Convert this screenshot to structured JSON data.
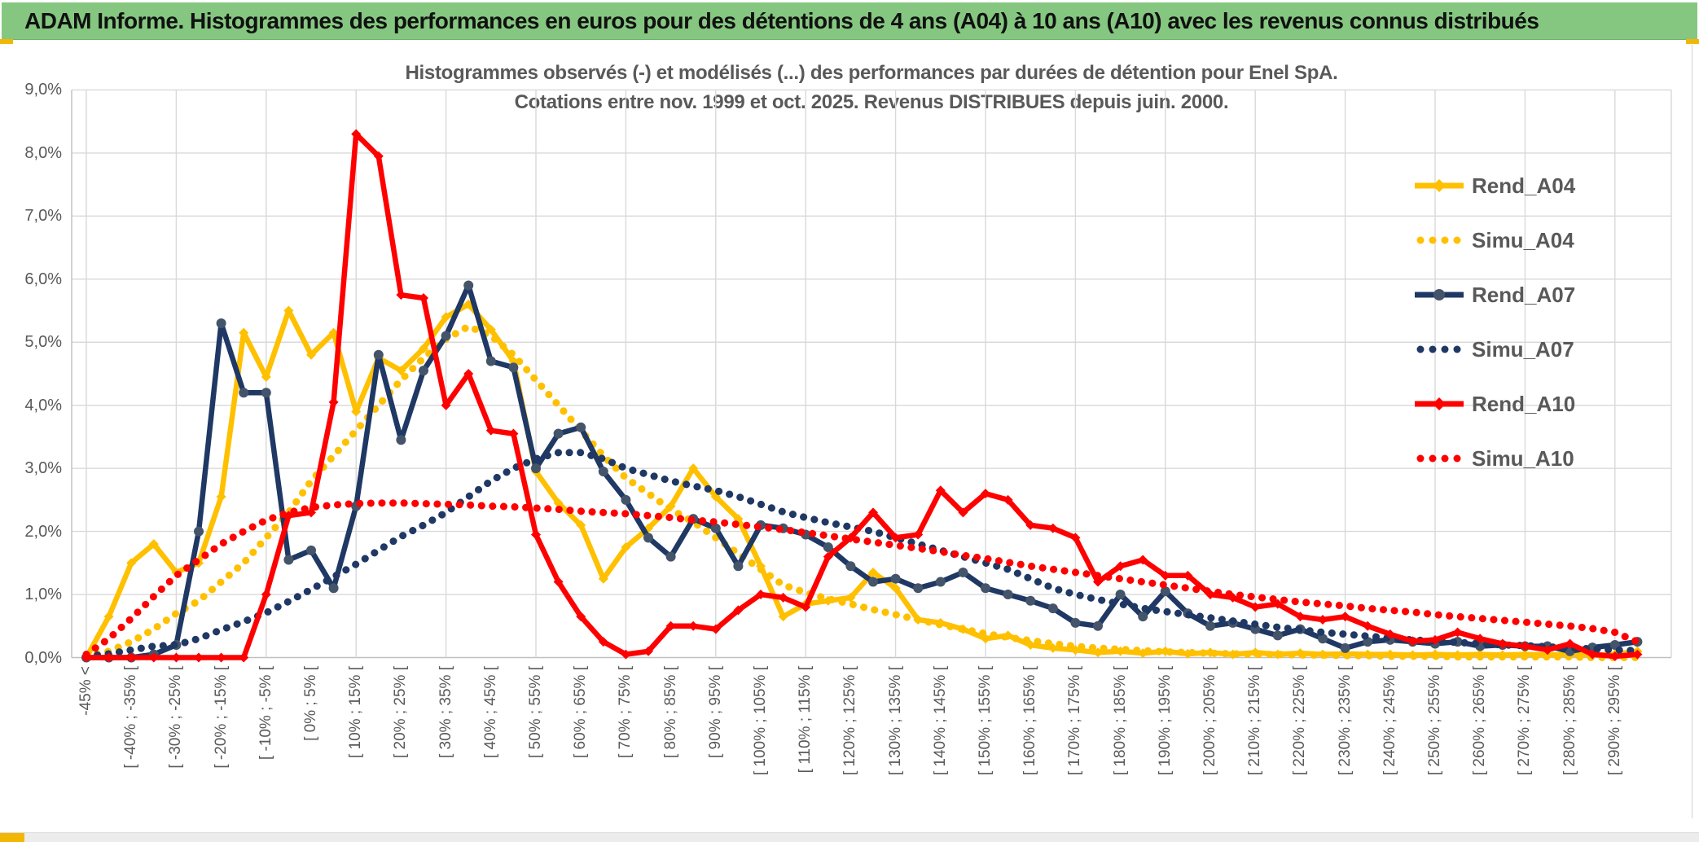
{
  "header": {
    "title": "ADAM Informe. Histogrammes des performances en euros pour des détentions de 4 ans (A04) à 10 ans (A10) avec les revenus connus distribués",
    "bar_color": "#85C780",
    "accent_color": "#F2B705"
  },
  "chart": {
    "title_line1": "Histogrammes observés (-) et modélisés (...) des performances par durées de détention pour Enel SpA.",
    "title_line2": "Cotations entre nov. 1999 et oct. 2025. Revenus DISTRIBUES depuis juin. 2000.",
    "title_color": "#595959",
    "gridline_color": "#D9D9D9",
    "axis_color": "#BFBFBF"
  },
  "chart_data": {
    "type": "line",
    "title": "Histogrammes observés (-) et modélisés (...) des performances par durées de détention pour Enel SpA. Cotations entre nov. 1999 et oct. 2025. Revenus DISTRIBUES depuis juin. 2000.",
    "xlabel": "",
    "ylabel": "",
    "ylim": [
      0,
      9
    ],
    "ytick_labels": [
      "0,0%",
      "1,0%",
      "2,0%",
      "3,0%",
      "4,0%",
      "5,0%",
      "6,0%",
      "7,0%",
      "8,0%",
      "9,0%"
    ],
    "grid": true,
    "legend_position": "right",
    "categories": [
      "-45% <",
      "",
      "[ -40% ; -35% [",
      "",
      "[ -30% ; -25% [",
      "",
      "[ -20% ; -15% [",
      "",
      "[ -10% ; -5% [",
      "",
      "[ 0% ; 5% [",
      "",
      "[ 10% ; 15% [",
      "",
      "[ 20% ; 25% [",
      "",
      "[ 30% ; 35% [",
      "",
      "[ 40% ; 45% [",
      "",
      "[ 50% ; 55% [",
      "",
      "[ 60% ; 65% [",
      "",
      "[ 70% ; 75% [",
      "",
      "[ 80% ; 85% [",
      "",
      "[ 90% ; 95% [",
      "",
      "[ 100% ; 105% [",
      "",
      "[ 110% ; 115% [",
      "",
      "[ 120% ; 125% [",
      "",
      "[ 130% ; 135% [",
      "",
      "[ 140% ; 145% [",
      "",
      "[ 150% ; 155% [",
      "",
      "[ 160% ; 165% [",
      "",
      "[ 170% ; 175% [",
      "",
      "[ 180% ; 185% [",
      "",
      "[ 190% ; 195% [",
      "",
      "[ 200% ; 205% [",
      "",
      "[ 210% ; 215% [",
      "",
      "[ 220% ; 225% [",
      "",
      "[ 230% ; 235% [",
      "",
      "[ 240% ; 245% [",
      "",
      "[ 250% ; 255% [",
      "",
      "[ 260% ; 265% [",
      "",
      "[ 270% ; 275% [",
      "",
      "[ 280% ; 285% [",
      "",
      "[ 290% ; 295% [",
      ""
    ],
    "series": [
      {
        "name": "Rend_A04",
        "color": "#FFC000",
        "style": "solid",
        "marker": "diamond",
        "marker_color": "#FFC000",
        "values": [
          0,
          0.65,
          1.5,
          1.8,
          1.35,
          1.5,
          2.55,
          5.15,
          4.45,
          5.5,
          4.8,
          5.15,
          3.9,
          4.75,
          4.55,
          4.9,
          5.4,
          5.6,
          5.2,
          4.7,
          2.95,
          2.45,
          2.1,
          1.25,
          1.75,
          2.05,
          2.4,
          3.0,
          2.55,
          2.2,
          1.45,
          0.65,
          0.85,
          0.9,
          0.95,
          1.35,
          1.1,
          0.6,
          0.55,
          0.45,
          0.3,
          0.35,
          0.2,
          0.15,
          0.12,
          0.08,
          0.1,
          0.07,
          0.1,
          0.06,
          0.08,
          0.05,
          0.08,
          0.05,
          0.07,
          0.05,
          0.06,
          0.05,
          0.05,
          0.04,
          0.05,
          0.04,
          0.05,
          0.04,
          0.05,
          0.04,
          0.05,
          0.04,
          0.05,
          0.1
        ]
      },
      {
        "name": "Simu_A04",
        "color": "#FFC000",
        "style": "dotted",
        "marker": "none",
        "marker_color": "#FFC000",
        "values": [
          0.02,
          0.1,
          0.25,
          0.45,
          0.7,
          0.9,
          1.2,
          1.5,
          1.9,
          2.3,
          2.8,
          3.2,
          3.6,
          4.0,
          4.4,
          4.75,
          5.05,
          5.25,
          5.1,
          4.8,
          4.4,
          4.0,
          3.6,
          3.2,
          2.85,
          2.6,
          2.35,
          2.15,
          1.9,
          1.65,
          1.4,
          1.15,
          1.03,
          0.93,
          0.85,
          0.76,
          0.68,
          0.6,
          0.52,
          0.45,
          0.38,
          0.32,
          0.27,
          0.22,
          0.18,
          0.15,
          0.13,
          0.11,
          0.09,
          0.08,
          0.07,
          0.06,
          0.05,
          0.05,
          0.04,
          0.04,
          0.03,
          0.03,
          0.02,
          0.02,
          0.02,
          0.01,
          0.01,
          0.01,
          0.01,
          0.01,
          0.01,
          0,
          0,
          0
        ]
      },
      {
        "name": "Rend_A07",
        "color": "#1F3864",
        "style": "solid",
        "marker": "circle",
        "marker_color": "#44546A",
        "values": [
          0,
          0,
          0,
          0.05,
          0.2,
          2.0,
          5.3,
          4.2,
          4.2,
          1.55,
          1.7,
          1.1,
          2.4,
          4.8,
          3.45,
          4.55,
          5.1,
          5.9,
          4.7,
          4.6,
          3.0,
          3.55,
          3.65,
          2.95,
          2.5,
          1.9,
          1.6,
          2.2,
          2.05,
          1.45,
          2.1,
          2.05,
          1.95,
          1.75,
          1.45,
          1.2,
          1.25,
          1.1,
          1.2,
          1.35,
          1.1,
          1.0,
          0.9,
          0.78,
          0.55,
          0.5,
          1.0,
          0.65,
          1.05,
          0.7,
          0.5,
          0.55,
          0.45,
          0.35,
          0.45,
          0.3,
          0.15,
          0.25,
          0.28,
          0.25,
          0.22,
          0.25,
          0.18,
          0.2,
          0.18,
          0.18,
          0.1,
          0.16,
          0.2,
          0.25
        ]
      },
      {
        "name": "Simu_A07",
        "color": "#1F3864",
        "style": "dotted",
        "marker": "none",
        "marker_color": "#1F3864",
        "values": [
          0.02,
          0.06,
          0.12,
          0.18,
          0.2,
          0.3,
          0.44,
          0.57,
          0.71,
          0.89,
          1.08,
          1.28,
          1.48,
          1.7,
          1.92,
          2.1,
          2.3,
          2.55,
          2.8,
          3.0,
          3.15,
          3.25,
          3.25,
          3.15,
          3.0,
          2.9,
          2.8,
          2.72,
          2.65,
          2.55,
          2.43,
          2.31,
          2.22,
          2.14,
          2.07,
          2.0,
          1.9,
          1.8,
          1.7,
          1.6,
          1.5,
          1.4,
          1.25,
          1.1,
          1.0,
          0.92,
          0.85,
          0.78,
          0.73,
          0.68,
          0.63,
          0.58,
          0.53,
          0.48,
          0.44,
          0.4,
          0.37,
          0.34,
          0.31,
          0.28,
          0.26,
          0.24,
          0.22,
          0.2,
          0.19,
          0.17,
          0.15,
          0.14,
          0.12,
          0.11
        ]
      },
      {
        "name": "Rend_A10",
        "color": "#FF0000",
        "style": "solid",
        "marker": "diamond",
        "marker_color": "#FF0000",
        "values": [
          0,
          0,
          0,
          0,
          0,
          0,
          0,
          0,
          1.0,
          2.25,
          2.3,
          4.05,
          8.3,
          7.95,
          5.75,
          5.7,
          4.0,
          4.5,
          3.6,
          3.55,
          1.95,
          1.2,
          0.65,
          0.25,
          0.05,
          0.1,
          0.5,
          0.5,
          0.45,
          0.75,
          1.0,
          0.95,
          0.8,
          1.6,
          1.9,
          2.3,
          1.9,
          1.95,
          2.65,
          2.3,
          2.6,
          2.5,
          2.1,
          2.05,
          1.9,
          1.2,
          1.45,
          1.55,
          1.3,
          1.3,
          1.0,
          0.95,
          0.8,
          0.85,
          0.65,
          0.6,
          0.65,
          0.5,
          0.37,
          0.26,
          0.28,
          0.4,
          0.3,
          0.22,
          0.18,
          0.12,
          0.22,
          0.05,
          0.02,
          0.05
        ]
      },
      {
        "name": "Simu_A10",
        "color": "#FF0000",
        "style": "dotted",
        "marker": "none",
        "marker_color": "#FF0000",
        "values": [
          0.05,
          0.3,
          0.62,
          0.97,
          1.3,
          1.55,
          1.8,
          2.0,
          2.18,
          2.3,
          2.38,
          2.42,
          2.44,
          2.45,
          2.45,
          2.44,
          2.43,
          2.42,
          2.4,
          2.39,
          2.37,
          2.35,
          2.32,
          2.3,
          2.28,
          2.25,
          2.22,
          2.18,
          2.15,
          2.11,
          2.07,
          2.03,
          1.98,
          1.93,
          1.88,
          1.83,
          1.78,
          1.73,
          1.68,
          1.62,
          1.57,
          1.51,
          1.45,
          1.4,
          1.35,
          1.3,
          1.25,
          1.2,
          1.15,
          1.1,
          1.05,
          1.0,
          0.96,
          0.92,
          0.88,
          0.85,
          0.82,
          0.78,
          0.75,
          0.72,
          0.68,
          0.65,
          0.62,
          0.59,
          0.56,
          0.53,
          0.5,
          0.46,
          0.4,
          0.25
        ]
      }
    ]
  }
}
